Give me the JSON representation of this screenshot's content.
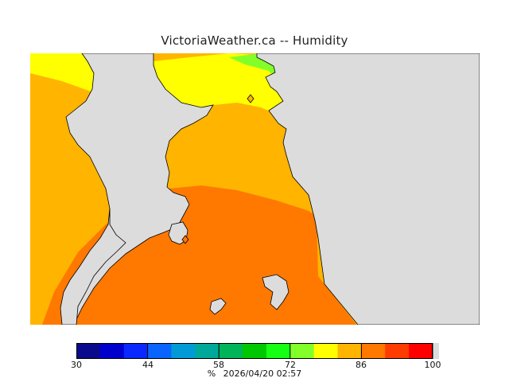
{
  "title": "VictoriaWeather.ca -- Humidity",
  "legend": {
    "ticks": [
      "30",
      "44",
      "58",
      "72",
      "86",
      "100"
    ],
    "colors": [
      "#0a0a8c",
      "#0000cd",
      "#0a28ff",
      "#0a64ff",
      "#009bd7",
      "#00a89a",
      "#00b45a",
      "#00c800",
      "#14ff14",
      "#82ff28",
      "#ffff00",
      "#ffb400",
      "#ff7800",
      "#ff3c00",
      "#ff0000"
    ],
    "unit": "%",
    "timestamp": "2026/04/20 02:57"
  },
  "map": {
    "land_color": "#dcdcdc",
    "zone_colors": [
      "#ffff00",
      "#ffb400",
      "#ff7800",
      "#82ff28"
    ],
    "station_markers": [
      "station-north",
      "station-south"
    ]
  }
}
